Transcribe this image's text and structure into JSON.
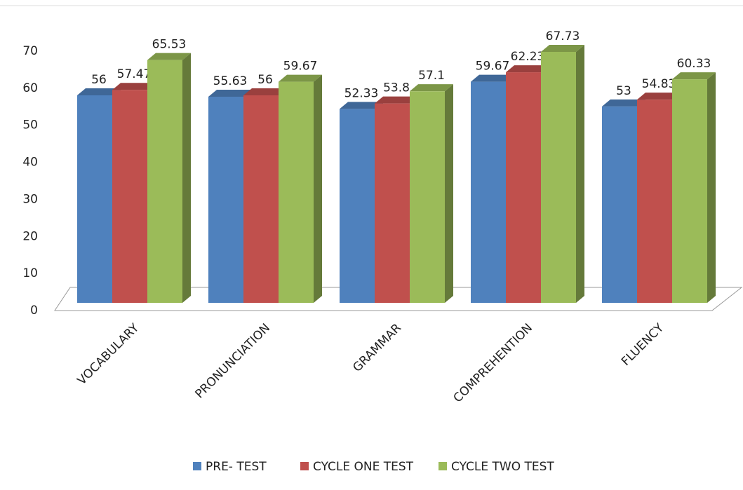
{
  "chart_data": {
    "type": "bar3d",
    "categories": [
      "VOCABULARY",
      "PRONUNCIATION",
      "GRAMMAR",
      "COMPREHENTION",
      "FLUENCY"
    ],
    "series": [
      {
        "name": "PRE- TEST",
        "color": "#4f81bd",
        "values": [
          56,
          55.63,
          52.33,
          59.67,
          53
        ]
      },
      {
        "name": "CYCLE ONE TEST",
        "color": "#c0504d",
        "values": [
          57.47,
          56,
          53.8,
          62.23,
          54.83
        ]
      },
      {
        "name": "CYCLE TWO TEST",
        "color": "#9bbb59",
        "values": [
          65.53,
          59.67,
          57.1,
          67.73,
          60.33
        ]
      }
    ],
    "ylim": [
      0,
      70
    ],
    "yticks": [
      0,
      10,
      20,
      30,
      40,
      50,
      60,
      70
    ],
    "legend": "bottom",
    "data_labels": true
  }
}
